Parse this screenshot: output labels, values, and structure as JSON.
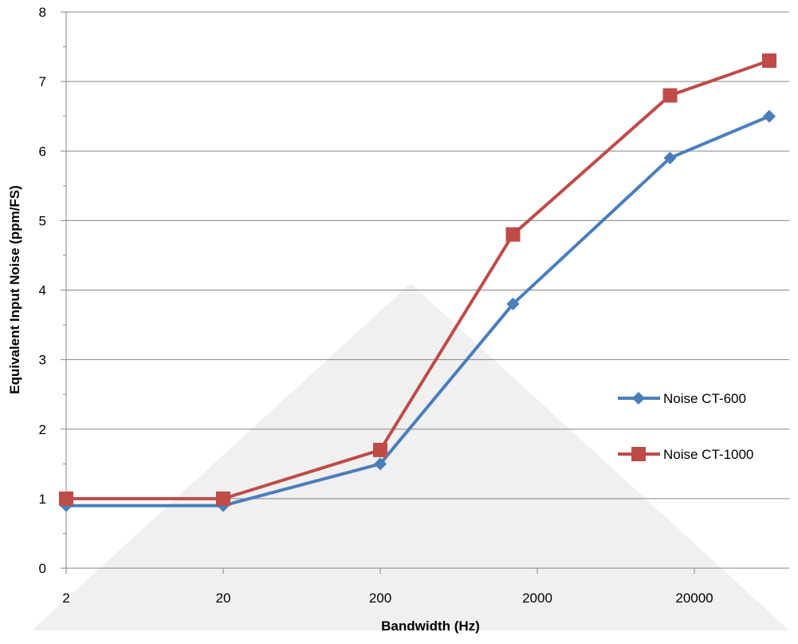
{
  "chart_data": {
    "type": "line",
    "xlabel": "Bandwidth (Hz)",
    "ylabel": "Equivalent Input Noise (ppm/FS)",
    "x_scale": "log",
    "x_ticks": [
      "2",
      "20",
      "200",
      "2000",
      "20000"
    ],
    "y_ticks": [
      "0",
      "1",
      "2",
      "3",
      "4",
      "5",
      "6",
      "7",
      "8"
    ],
    "ylim": [
      0,
      8
    ],
    "grid": "horizontal",
    "legend_position": "right",
    "x": [
      2,
      20,
      200,
      1400,
      14000,
      60000
    ],
    "series": [
      {
        "name": "Noise CT-600",
        "color": "#4a7ebb",
        "marker": "diamond",
        "values": [
          0.9,
          0.9,
          1.5,
          3.8,
          5.9,
          6.5
        ]
      },
      {
        "name": "Noise CT-1000",
        "color": "#be4b48",
        "marker": "square",
        "values": [
          1.0,
          1.0,
          1.7,
          4.8,
          6.8,
          7.3
        ]
      }
    ]
  }
}
